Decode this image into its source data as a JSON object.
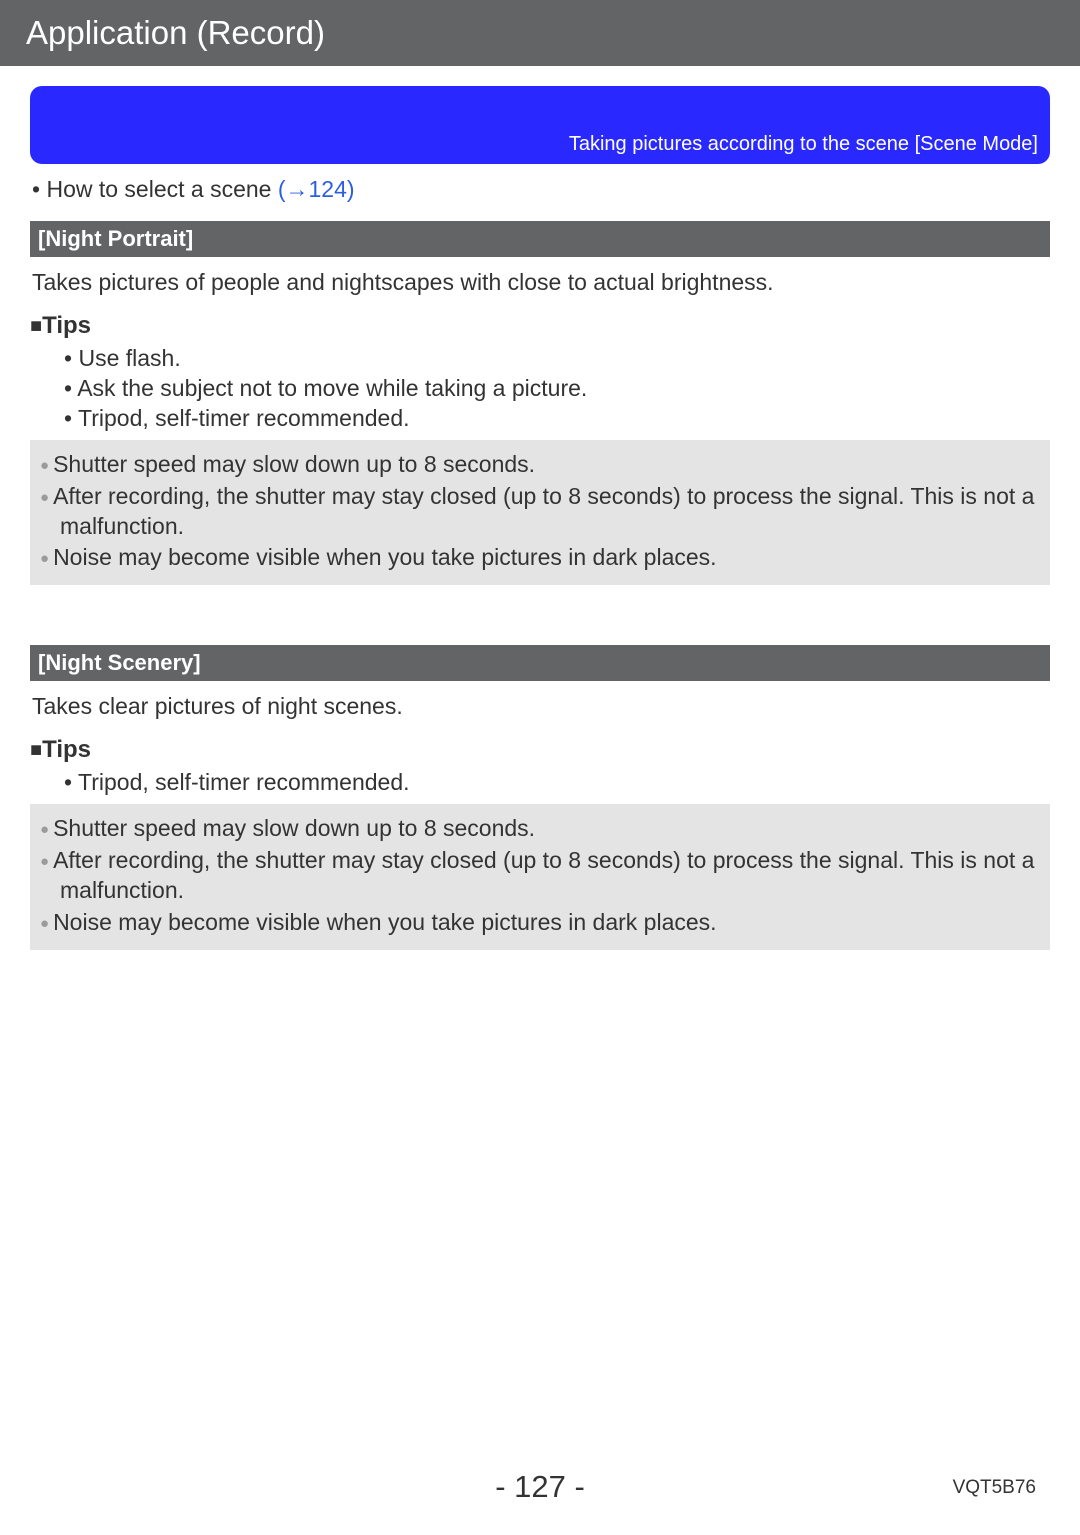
{
  "title_bar": "Application (Record)",
  "banner_text": "Taking pictures according to the scene  [Scene Mode]",
  "how_to": {
    "prefix": "How to select a scene ",
    "link": "(→124)"
  },
  "sections": [
    {
      "header": "[Night Portrait]",
      "description": "Takes pictures of people and nightscapes with close to actual brightness.",
      "tips_label": "Tips",
      "tips": [
        "Use flash.",
        "Ask the subject not to move while taking a picture.",
        "Tripod, self-timer recommended."
      ],
      "notes": [
        "Shutter speed may slow down up to 8 seconds.",
        "After recording, the shutter may stay closed (up to 8 seconds) to process the signal. This is not a malfunction.",
        "Noise may become visible when you take pictures in dark places."
      ]
    },
    {
      "header": "[Night Scenery]",
      "description": "Takes clear pictures of night scenes.",
      "tips_label": "Tips",
      "tips": [
        "Tripod, self-timer recommended."
      ],
      "notes": [
        "Shutter speed may slow down up to 8 seconds.",
        "After recording, the shutter may stay closed (up to 8 seconds) to process the signal. This is not a malfunction.",
        "Noise may become visible when you take pictures in dark places."
      ]
    }
  ],
  "page_number": "- 127 -",
  "doc_code": "VQT5B76",
  "colors": {
    "title_bar_bg": "#636466",
    "title_bar_fg": "#ffffff",
    "banner_bg": "#2828ff",
    "section_header_bg": "#636466",
    "note_box_bg": "#e4e4e4",
    "note_bullet": "#9b9b9b",
    "link": "#2c5fe0",
    "body_text": "#333333"
  }
}
